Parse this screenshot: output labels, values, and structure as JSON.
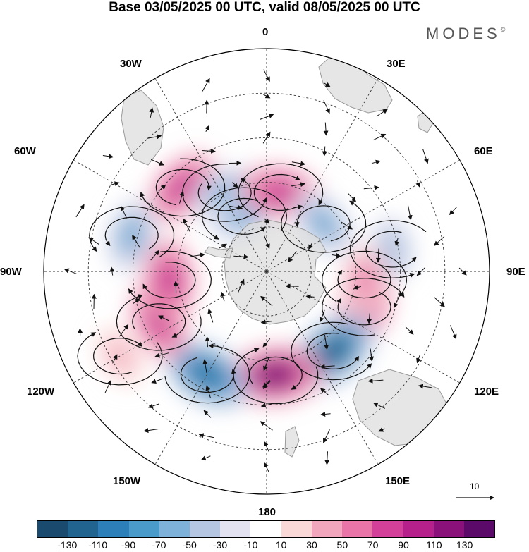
{
  "title": "Base 03/05/2025 00 UTC, valid 08/05/2025 00 UTC",
  "brand": "MODES",
  "brand_mark": "©",
  "longitude_labels": {
    "lon_0": "0",
    "lon_30e": "30E",
    "lon_60e": "60E",
    "lon_90e": "90E",
    "lon_120e": "120E",
    "lon_150e": "150E",
    "lon_180": "180",
    "lon_150w": "150W",
    "lon_120w": "120W",
    "lon_90w": "90W",
    "lon_60w": "60W",
    "lon_30w": "30W"
  },
  "colorbar": {
    "colors": [
      "#1a4a6e",
      "#21648f",
      "#2c7fb8",
      "#4a9bc9",
      "#7eb2d8",
      "#b5c6e2",
      "#e2e2f0",
      "#ffffff",
      "#fad8d8",
      "#f2a6bd",
      "#e874a8",
      "#d2409a",
      "#b5208a",
      "#8a107a",
      "#5c0a6a"
    ],
    "tick_labels": [
      "-130",
      "-110",
      "-90",
      "-70",
      "-50",
      "-30",
      "-10",
      "10",
      "30",
      "50",
      "70",
      "90",
      "110",
      "130"
    ]
  },
  "reference_vector": {
    "label": "10"
  },
  "colors": {
    "land": "#dcdcdc",
    "coast": "#9a9a9a",
    "grid": "#333333",
    "streamline": "#111111"
  },
  "anomaly_centers": [
    {
      "lon": -45,
      "lat": -50,
      "value": 95
    },
    {
      "lon": -28,
      "lat": -60,
      "value": -70
    },
    {
      "lon": -22,
      "lat": -70,
      "value": -70
    },
    {
      "lon": 10,
      "lat": -63,
      "value": 100
    },
    {
      "lon": 50,
      "lat": -65,
      "value": -80
    },
    {
      "lon": 80,
      "lat": -47,
      "value": -50
    },
    {
      "lon": 110,
      "lat": -55,
      "value": 100
    },
    {
      "lon": 140,
      "lat": -55,
      "value": -130
    },
    {
      "lon": 175,
      "lat": -55,
      "value": 130
    },
    {
      "lon": -150,
      "lat": -50,
      "value": -120
    },
    {
      "lon": -115,
      "lat": -50,
      "value": 90
    },
    {
      "lon": -95,
      "lat": -57,
      "value": 100
    },
    {
      "lon": -75,
      "lat": -43,
      "value": -80
    },
    {
      "lon": -120,
      "lat": -33,
      "value": 40
    },
    {
      "lon": 95,
      "lat": -57,
      "value": 60
    }
  ]
}
